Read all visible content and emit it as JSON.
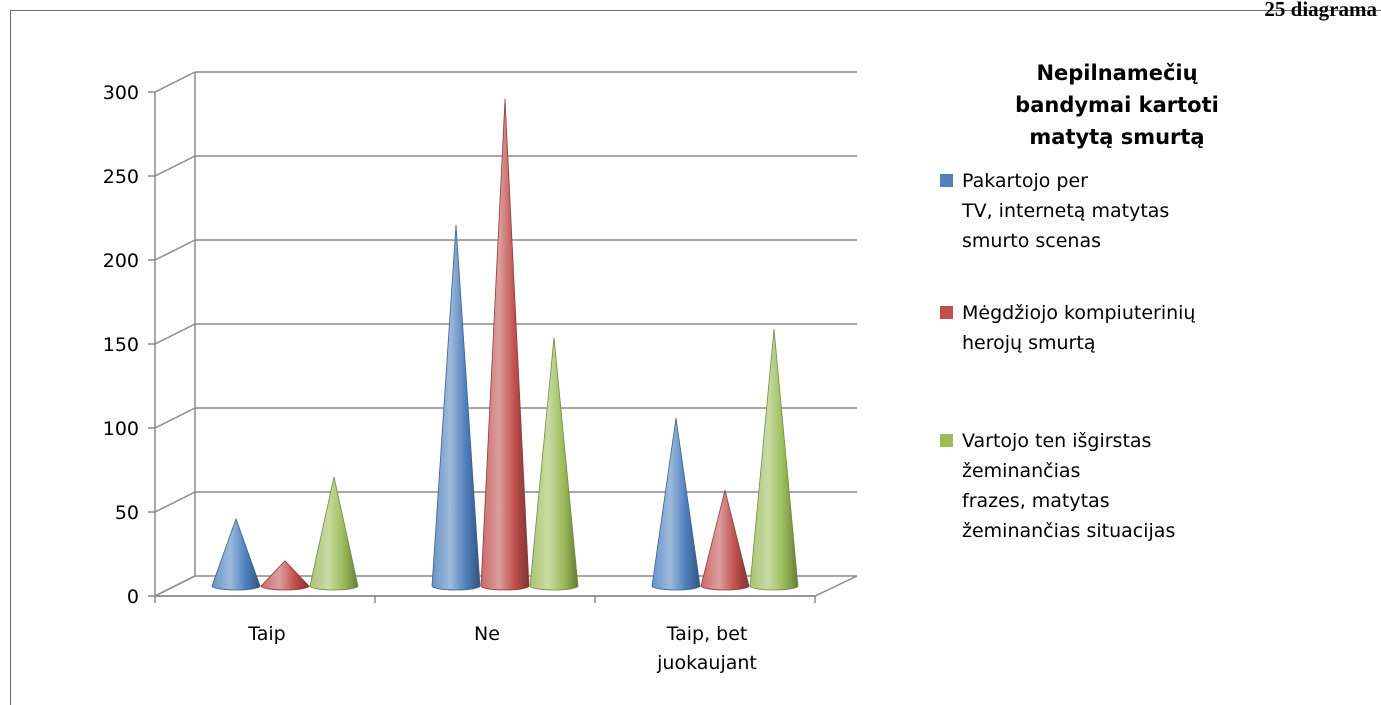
{
  "caption": "25 diagrama",
  "chart_data": {
    "type": "bar",
    "style": "3d-cone",
    "title": "Nepilnamečių bandymai kartoti matytą smurtą",
    "title_lines": [
      "Nepilnamečių",
      "bandymai kartoti",
      "matytą smurtą"
    ],
    "categories": [
      "Taip",
      "Ne",
      "Taip, bet juokaujant"
    ],
    "category_lines": [
      [
        "Taip"
      ],
      [
        "Ne"
      ],
      [
        "Taip, bet",
        "juokaujant"
      ]
    ],
    "ylim": [
      0,
      300
    ],
    "yticks": [
      0,
      50,
      100,
      150,
      200,
      250,
      300
    ],
    "grid": true,
    "legend_position": "right",
    "series": [
      {
        "name": "Pakartojo per TV, internetą matytas smurto scenas",
        "name_lines": [
          "Pakartojo per",
          "TV, internetą matytas",
          "smurto scenas"
        ],
        "color": "#4f81bd",
        "values": [
          40,
          215,
          100
        ]
      },
      {
        "name": "Mėgdžiojo kompiuterinių herojų smurtą",
        "name_lines": [
          "Mėgdžiojo kompiuterinių",
          "herojų smurtą"
        ],
        "color": "#c0504d",
        "values": [
          15,
          290,
          57
        ]
      },
      {
        "name": "Vartojo ten išgirstas žeminančias frazes, matytas žeminančias situacijas",
        "name_lines": [
          "Vartojo ten išgirstas",
          "žeminančias",
          "frazes, matytas",
          "žeminančias situacijas"
        ],
        "color": "#9bbb59",
        "values": [
          65,
          148,
          153
        ]
      }
    ]
  }
}
